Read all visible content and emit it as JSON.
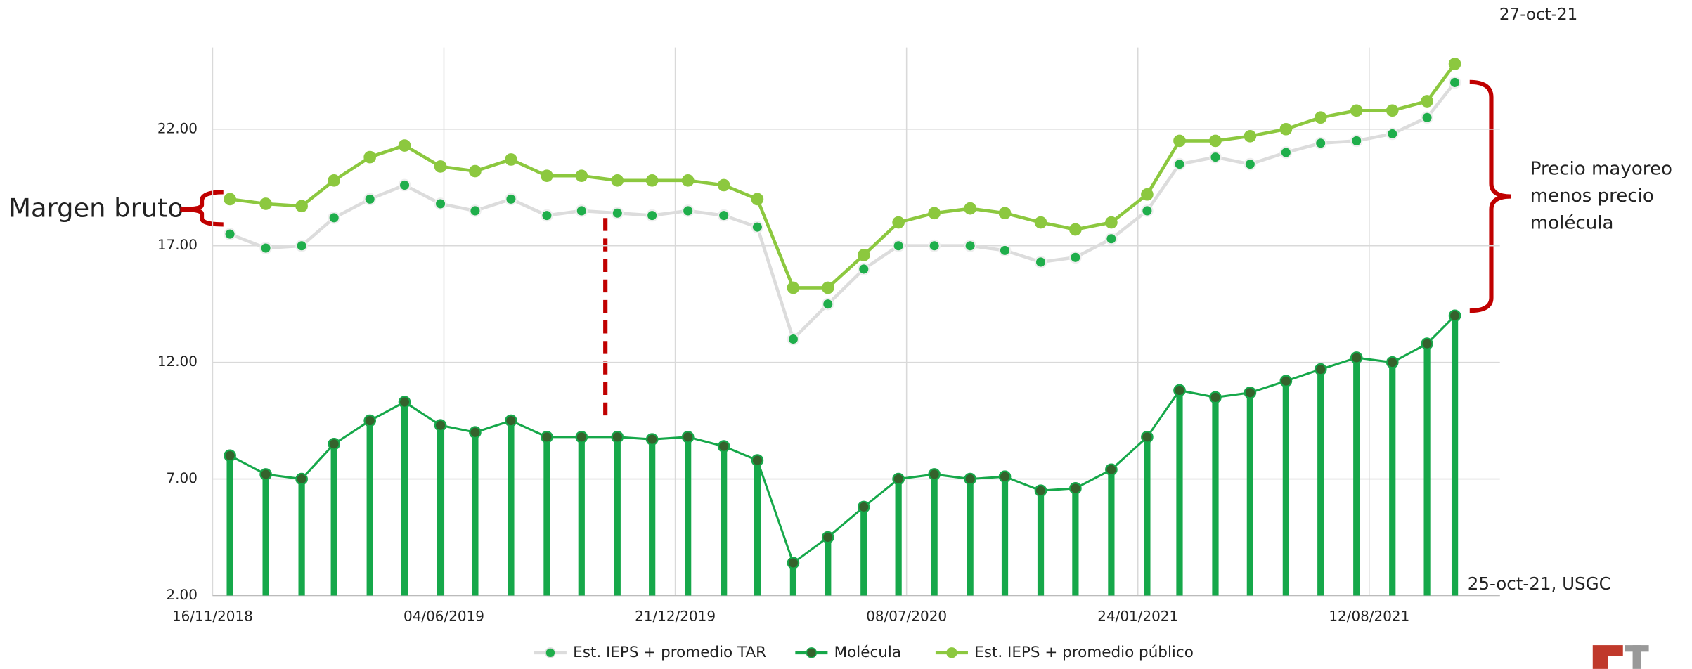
{
  "chart_data": {
    "type": "line",
    "annotations": {
      "date_top": "27-oct-21",
      "source_note": "25-oct-21, USGC",
      "margin_label": "Margen bruto",
      "bracket_label": [
        "Precio mayoreo",
        "menos precio",
        "molécula"
      ]
    },
    "x": [
      "2018-12-01",
      "2019-01-01",
      "2019-02-01",
      "2019-03-01",
      "2019-04-01",
      "2019-05-01",
      "2019-06-01",
      "2019-07-01",
      "2019-08-01",
      "2019-09-01",
      "2019-10-01",
      "2019-11-01",
      "2019-12-01",
      "2020-01-01",
      "2020-02-01",
      "2020-03-01",
      "2020-04-01",
      "2020-05-01",
      "2020-06-01",
      "2020-07-01",
      "2020-08-01",
      "2020-09-01",
      "2020-10-01",
      "2020-11-01",
      "2020-12-01",
      "2021-01-01",
      "2021-02-01",
      "2021-03-01",
      "2021-04-01",
      "2021-05-01",
      "2021-06-01",
      "2021-07-01",
      "2021-08-01",
      "2021-09-01",
      "2021-10-01",
      "2021-10-25"
    ],
    "series": [
      {
        "name": "Est. IEPS + promedio TAR",
        "color": "#1fae4b",
        "line_color": "#dcdcdc",
        "values": [
          17.5,
          16.9,
          17.0,
          18.2,
          19.0,
          19.6,
          18.8,
          18.5,
          19.0,
          18.3,
          18.5,
          18.4,
          18.3,
          18.5,
          18.3,
          17.8,
          13.0,
          14.5,
          16.0,
          17.0,
          17.0,
          17.0,
          16.8,
          16.3,
          16.5,
          17.3,
          18.5,
          20.5,
          20.8,
          20.5,
          21.0,
          21.4,
          21.5,
          21.8,
          22.5,
          24.0
        ]
      },
      {
        "name": "Molécula",
        "color": "#35622c",
        "line_color": "#16a84a",
        "values": [
          8.0,
          7.2,
          7.0,
          8.5,
          9.5,
          10.3,
          9.3,
          9.0,
          9.5,
          8.8,
          8.8,
          8.8,
          8.7,
          8.8,
          8.4,
          7.8,
          3.4,
          4.5,
          5.8,
          7.0,
          7.2,
          7.0,
          7.1,
          6.5,
          6.6,
          7.4,
          8.8,
          10.8,
          10.5,
          10.7,
          11.2,
          11.7,
          12.2,
          12.0,
          12.8,
          14.0
        ]
      },
      {
        "name": "Est. IEPS + promedio público",
        "color": "#8cc83f",
        "line_color": "#8cc83f",
        "values": [
          19.0,
          18.8,
          18.7,
          19.8,
          20.8,
          21.3,
          20.4,
          20.2,
          20.7,
          20.0,
          20.0,
          19.8,
          19.8,
          19.8,
          19.6,
          19.0,
          15.2,
          15.2,
          16.6,
          18.0,
          18.4,
          18.6,
          18.4,
          18.0,
          17.7,
          18.0,
          19.2,
          21.5,
          21.5,
          21.7,
          22.0,
          22.5,
          22.8,
          22.8,
          23.2,
          24.8
        ]
      }
    ],
    "xlim": [
      "2018-11-16",
      "2021-12-03"
    ],
    "xticks": [
      {
        "value": "2018-11-16",
        "label": "16/11/2018"
      },
      {
        "value": "2019-06-04",
        "label": "04/06/2019"
      },
      {
        "value": "2019-12-21",
        "label": "21/12/2019"
      },
      {
        "value": "2020-07-08",
        "label": "08/07/2020"
      },
      {
        "value": "2021-01-24",
        "label": "24/01/2021"
      },
      {
        "value": "2021-08-12",
        "label": "12/08/2021"
      }
    ],
    "ylim": [
      2,
      25.5
    ],
    "yticks": [
      {
        "value": 2,
        "label": "2.00"
      },
      {
        "value": 7,
        "label": "7.00"
      },
      {
        "value": 12,
        "label": "12.00"
      },
      {
        "value": 17,
        "label": "17.00"
      },
      {
        "value": 22,
        "label": "22.00"
      }
    ],
    "grid": true,
    "legend": "bottom"
  }
}
